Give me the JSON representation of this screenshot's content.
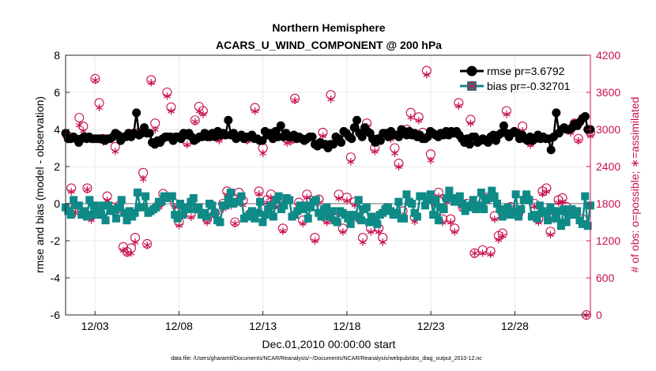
{
  "chart_data": {
    "type": "line",
    "title": [
      "Northern Hemisphere",
      "ACARS_U_WIND_COMPONENT @ 200 hPa"
    ],
    "xlabel": "Dec.01,2010 00:00:00 start",
    "ylabel_left": "rmse and bias (model - observation)",
    "ylabel_right": "# of obs: o=possible; ∗=assimilated",
    "footer": "data file: /Users/gharamti/Documents/NCAR/Reanalysis/~/Documents/NCAR/Reanalysis/webpub/obs_diag_output_2010-12.nc",
    "x_range_days": [
      0.25,
      31.5
    ],
    "ylim_left": [
      -6,
      8
    ],
    "ylim_right": [
      0,
      4200
    ],
    "yticks_left": [
      "-6",
      "-4",
      "-2",
      "0",
      "2",
      "4",
      "6",
      "8"
    ],
    "yticks_right": [
      "0",
      "600",
      "1200",
      "1800",
      "2400",
      "3000",
      "3600",
      "4200"
    ],
    "x_tick_days": [
      2,
      7,
      12,
      17,
      22,
      27
    ],
    "x_tick_labels": [
      "12/03",
      "12/08",
      "12/13",
      "12/18",
      "12/23",
      "12/28"
    ],
    "grid": true,
    "legend_position": "top-right",
    "colors": {
      "rmse": "#000000",
      "bias": "#0e8a87",
      "counts": "#c8104f",
      "zero_line": "#b4b4b4"
    },
    "series": [
      {
        "name": "rmse pr=3.6792",
        "values": [
          3.8,
          3.5,
          3.5,
          3.6,
          3.5,
          3.3,
          3.5,
          3.6,
          3.5,
          3.6,
          3.5,
          3.5,
          3.5,
          3.5,
          3.5,
          3.4,
          3.5,
          3.5,
          3.6,
          3.8,
          3.7,
          3.4,
          3.6,
          3.6,
          3.8,
          3.6,
          3.8,
          4.9,
          3.7,
          3.8,
          4.1,
          3.8,
          3.8,
          3.3,
          3.2,
          3.4,
          3.3,
          3.5,
          3.6,
          3.6,
          3.6,
          3.4,
          3.6,
          3.6,
          3.5,
          3.8,
          3.7,
          3.8,
          3.6,
          3.4,
          3.5,
          3.6,
          3.6,
          3.8,
          3.6,
          3.6,
          3.8,
          3.6,
          3.9,
          3.7,
          3.8,
          3.7,
          4.5,
          3.7,
          3.8,
          3.5,
          3.6,
          3.7,
          3.5,
          3.6,
          3.6,
          3.7,
          3.5,
          3.5,
          3.4,
          3.4,
          3.9,
          3.7,
          3.8,
          3.5,
          3.9,
          3.6,
          4.2,
          3.6,
          3.8,
          3.6,
          3.6,
          3.7,
          3.5,
          3.6,
          3.5,
          3.4,
          3.5,
          3.6,
          3.6,
          3.2,
          3.1,
          3.3,
          3.2,
          3.2,
          3.0,
          3.2,
          3.2,
          3.6,
          3.5,
          3.3,
          3.9,
          3.8,
          3.6,
          3.5,
          4.1,
          4.5,
          3.8,
          3.6,
          4.1,
          3.9,
          3.8,
          3.5,
          3.3,
          3.5,
          3.4,
          3.8,
          3.8,
          3.6,
          3.9,
          3.7,
          3.7,
          3.6,
          4.0,
          3.9,
          3.7,
          3.9,
          3.7,
          3.8,
          3.6,
          3.7,
          3.5,
          3.5,
          3.6,
          3.9,
          3.8,
          3.7,
          3.6,
          3.8,
          3.7,
          3.9,
          3.7,
          3.9,
          3.8,
          3.9,
          3.7,
          3.5,
          3.3,
          3.5,
          3.2,
          3.6,
          3.6,
          3.3,
          3.4,
          3.5,
          3.4,
          3.3,
          3.6,
          3.7,
          3.4,
          3.7,
          3.8,
          4.2,
          3.8,
          3.6,
          3.8,
          3.9,
          3.8,
          3.5,
          3.7,
          3.5,
          3.4,
          3.6,
          3.4,
          3.5,
          3.7,
          3.5,
          3.6,
          3.5,
          3.5,
          2.9,
          3.6,
          4.9,
          3.8,
          4.0,
          4.1,
          4.0,
          4.0,
          4.1,
          4.3,
          4.2,
          4.4,
          4.6,
          4.7,
          4.0,
          4.0
        ]
      },
      {
        "name": "bias pr=-0.32701",
        "values": [
          -0.2,
          -0.4,
          -0.6,
          0.2,
          -0.1,
          -0.1,
          -0.6,
          -0.4,
          -0.7,
          0.2,
          -0.6,
          -0.1,
          -0.4,
          -0.6,
          -0.1,
          -0.9,
          -0.1,
          -0.4,
          -0.3,
          -0.8,
          -0.2,
          0.2,
          -0.5,
          -0.9,
          -0.4,
          -0.7,
          -0.5,
          0.6,
          -0.2,
          -0.2,
          0.4,
          -0.5,
          -0.4,
          -0.3,
          -0.2,
          0.1,
          0.1,
          0.4,
          0.3,
          0.4,
          0.4,
          -0.6,
          -0.8,
          0.0,
          -0.6,
          -0.2,
          -0.3,
          0.1,
          0.3,
          -0.3,
          -0.2,
          -0.6,
          -0.5,
          -0.7,
          0.0,
          -0.1,
          -0.5,
          -0.9,
          -1.0,
          -0.1,
          -0.1,
          0.2,
          0.6,
          0.0,
          0.1,
          0.1,
          0.4,
          -0.8,
          -0.7,
          -0.6,
          -0.4,
          -0.8,
          -0.5,
          0.1,
          -1.0,
          -0.6,
          -0.3,
          -0.1,
          -0.7,
          0.2,
          0.4,
          -0.3,
          -0.1,
          0.3,
          0.2,
          -0.7,
          -0.6,
          -0.4,
          -0.1,
          -0.3,
          -0.1,
          -0.8,
          -0.2,
          0.1,
          0.2,
          -0.5,
          -0.7,
          -0.3,
          -0.2,
          -0.7,
          -0.4,
          -0.9,
          -1.0,
          -0.4,
          -0.5,
          -0.6,
          -0.8,
          -1.1,
          -0.6,
          -0.7,
          0.2,
          -0.9,
          -0.3,
          -0.2,
          -1.0,
          -0.7,
          -0.9,
          -1.1,
          -0.6,
          -0.5,
          -0.3,
          -0.2,
          -0.4,
          -0.6,
          -0.5,
          0.1,
          -0.8,
          -0.8,
          0.5,
          0.1,
          0.0,
          -0.5,
          -0.7,
          0.4,
          0.4,
          -0.1,
          0.2,
          0.5,
          -0.6,
          0.2,
          -0.9,
          -0.2,
          -0.3,
          0.3,
          0.7,
          0.3,
          0.1,
          0.3,
          0.4,
          0.0,
          -0.4,
          -0.2,
          -0.1,
          0.2,
          -0.3,
          -0.1,
          0.6,
          -0.3,
          0.2,
          0.3,
          0.7,
          0.4,
          0.0,
          -0.3,
          -0.7,
          -0.5,
          -0.2,
          -0.6,
          -0.4,
          0.5,
          -0.7,
          -0.3,
          0.2,
          0.5,
          0.2,
          -0.7,
          -0.6,
          -0.8,
          -0.1,
          -0.4,
          -0.5,
          -0.9,
          -0.2,
          -0.4,
          -0.8,
          -0.4,
          -1.2,
          -0.3,
          -1.0,
          -0.6,
          -0.3,
          -0.6,
          -0.4,
          -0.9,
          -1.1,
          0.4,
          -1.2,
          -0.1
        ]
      },
      {
        "name": "obs possible (o)",
        "values_text": "2900,2050,1750,3190,3050,2050,1600,3820,3430,2850,1920,1750,2720,1770,1100,1020,1080,1250,2950,2300,1150,3800,3100,1800,1960,3600,3360,1800,1500,1730,2800,1630,3150,3370,3300,1550,2920,1650,2880,1800,2000,1830,1500,1980,1850,2850,1650,3350,2000,2700,1860,1950,1800,1800,1400,2850,2850,3500,1820,1530,1950,1850,1250,1870,2950,1550,3560,1550,1950,1400,1900,2550,1830,1580,1250,3100,1400,2700,1400,1250,1730,2900,2700,2450,1680,3000,3270,1580,3200,2950,3950,2600,1830,1980,1550,1880,1550,1400,3430,1750,1800,3160,1000,1850,1050,1900,1030,1600,1280,1320,3300,1750,1700,1640,3050,1900,2800,1800,1550,2000,2050,1350,1600,1860,1890,1750,3000,3100,2850,1550,0,2950"
      },
      {
        "name": "obs assimilated (*)",
        "values_text": "2840,2000,1650,3070,2980,2030,1540,3800,3360,2800,1860,1680,2650,1700,1050,1000,1000,1180,2900,2200,1130,3760,3000,1740,1900,3540,3300,1750,1450,1700,2760,1580,3130,3300,3250,1500,2880,1600,2820,1720,1950,1770,1480,1920,1780,2820,1600,3300,1960,2620,1820,1900,1750,1750,1360,2780,2800,3470,1780,1480,1900,1790,1200,1820,2900,1500,3490,1520,1890,1350,1850,2480,1780,1530,1180,3050,1350,2650,1350,1180,1700,2850,2620,2400,1600,2950,3200,1510,3150,2880,3890,2500,1780,1920,1500,1830,1500,1350,3380,1710,1750,3100,1000,1790,1000,1850,980,1550,1220,1280,3250,1700,1650,1600,2980,1850,2750,1760,1500,1960,2000,1300,1550,1820,1840,1700,2950,3050,2820,1500,0,2900"
      }
    ]
  }
}
